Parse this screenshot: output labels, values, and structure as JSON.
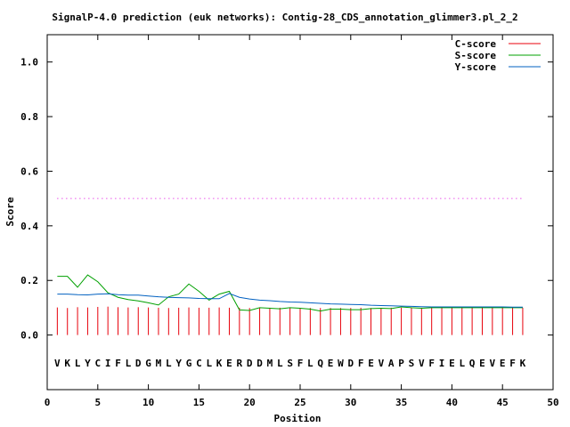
{
  "chart_data": {
    "type": "line",
    "title": "SignalP-4.0 prediction (euk networks): Contig-28_CDS_annotation_glimmer3.pl_2_2",
    "xlabel": "Position",
    "ylabel": "Score",
    "xlim": [
      0,
      50
    ],
    "ylim": [
      -0.2,
      1.1
    ],
    "x_ticks": [
      "0",
      "5",
      "10",
      "15",
      "20",
      "25",
      "30",
      "35",
      "40",
      "45",
      "50"
    ],
    "y_ticks": [
      "0.0",
      "0.2",
      "0.4",
      "0.6",
      "0.8",
      "1.0"
    ],
    "y_tick_values": [
      0.0,
      0.2,
      0.4,
      0.6,
      0.8,
      1.0
    ],
    "x_tick_values": [
      0,
      5,
      10,
      15,
      20,
      25,
      30,
      35,
      40,
      45,
      50
    ],
    "legend_position": "top-right",
    "threshold": 0.5,
    "sequence": [
      "V",
      "K",
      "L",
      "Y",
      "C",
      "I",
      "F",
      "L",
      "D",
      "G",
      "M",
      "L",
      "Y",
      "G",
      "C",
      "L",
      "K",
      "E",
      "R",
      "D",
      "D",
      "M",
      "L",
      "S",
      "F",
      "L",
      "Q",
      "E",
      "W",
      "D",
      "F",
      "E",
      "V",
      "A",
      "P",
      "S",
      "V",
      "F",
      "I",
      "E",
      "L",
      "Q",
      "E",
      "V",
      "E",
      "F",
      "K"
    ],
    "x": [
      1,
      2,
      3,
      4,
      5,
      6,
      7,
      8,
      9,
      10,
      11,
      12,
      13,
      14,
      15,
      16,
      17,
      18,
      19,
      20,
      21,
      22,
      23,
      24,
      25,
      26,
      27,
      28,
      29,
      30,
      31,
      32,
      33,
      34,
      35,
      36,
      37,
      38,
      39,
      40,
      41,
      42,
      43,
      44,
      45,
      46,
      47
    ],
    "series": [
      {
        "name": "C-score",
        "color": "#e8000b",
        "style": "impulses",
        "values": [
          0.101,
          0.099,
          0.102,
          0.101,
          0.103,
          0.104,
          0.102,
          0.101,
          0.102,
          0.101,
          0.1,
          0.099,
          0.1,
          0.101,
          0.1,
          0.1,
          0.101,
          0.1,
          0.1,
          0.099,
          0.1,
          0.1,
          0.1,
          0.099,
          0.099,
          0.099,
          0.099,
          0.099,
          0.099,
          0.099,
          0.1,
          0.099,
          0.099,
          0.1,
          0.1,
          0.1,
          0.1,
          0.1,
          0.1,
          0.1,
          0.1,
          0.1,
          0.1,
          0.1,
          0.1,
          0.1,
          0.1
        ]
      },
      {
        "name": "S-score",
        "color": "#00a000",
        "style": "lines",
        "values": [
          0.215,
          0.215,
          0.175,
          0.22,
          0.195,
          0.155,
          0.138,
          0.13,
          0.125,
          0.118,
          0.11,
          0.14,
          0.15,
          0.187,
          0.16,
          0.128,
          0.15,
          0.16,
          0.092,
          0.09,
          0.1,
          0.098,
          0.096,
          0.1,
          0.098,
          0.095,
          0.088,
          0.095,
          0.095,
          0.093,
          0.093,
          0.097,
          0.098,
          0.097,
          0.103,
          0.1,
          0.098,
          0.1,
          0.1,
          0.1,
          0.1,
          0.1,
          0.1,
          0.1,
          0.1,
          0.1,
          0.1
        ]
      },
      {
        "name": "Y-score",
        "color": "#0060c0",
        "style": "lines",
        "values": [
          0.15,
          0.15,
          0.148,
          0.147,
          0.15,
          0.151,
          0.148,
          0.146,
          0.146,
          0.143,
          0.14,
          0.138,
          0.137,
          0.136,
          0.134,
          0.133,
          0.133,
          0.152,
          0.138,
          0.132,
          0.128,
          0.126,
          0.123,
          0.121,
          0.12,
          0.118,
          0.116,
          0.114,
          0.113,
          0.112,
          0.111,
          0.109,
          0.108,
          0.107,
          0.106,
          0.105,
          0.104,
          0.103,
          0.103,
          0.103,
          0.103,
          0.103,
          0.103,
          0.103,
          0.103,
          0.102,
          0.102
        ]
      }
    ]
  }
}
